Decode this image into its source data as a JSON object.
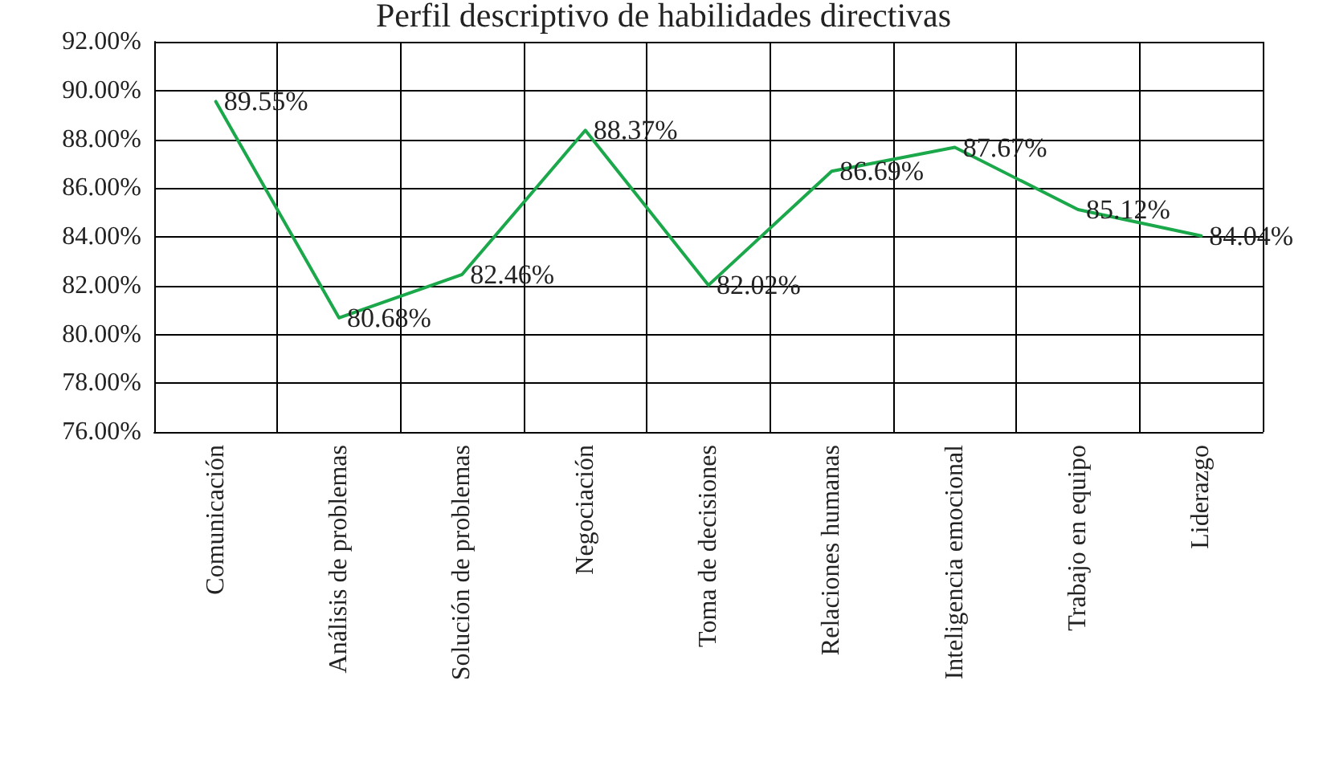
{
  "chart_data": {
    "type": "line",
    "title": "Perfil descriptivo de habilidades directivas",
    "categories": [
      "Comunicación",
      "Análisis de problemas",
      "Solución de problemas",
      "Negociación",
      "Toma de decisiones",
      "Relaciones humanas",
      "Inteligencia emocional",
      "Trabajo en equipo",
      "Liderazgo"
    ],
    "series": [
      {
        "color": "#1aa84a",
        "values": [
          89.55,
          80.68,
          82.46,
          88.37,
          82.02,
          86.69,
          87.67,
          85.12,
          84.04
        ],
        "value_labels": [
          "89.55%",
          "80.68%",
          "82.46%",
          "88.37%",
          "82.02%",
          "86.69%",
          "87.67%",
          "85.12%",
          "84.04%"
        ]
      }
    ],
    "ylim": [
      76,
      92
    ],
    "yticks": [
      {
        "value": 76,
        "label": "76.00%"
      },
      {
        "value": 78,
        "label": "78.00%"
      },
      {
        "value": 80,
        "label": "80.00%"
      },
      {
        "value": 82,
        "label": "82.00%"
      },
      {
        "value": 84,
        "label": "84.00%"
      },
      {
        "value": 86,
        "label": "86.00%"
      },
      {
        "value": 88,
        "label": "88.00%"
      },
      {
        "value": 90,
        "label": "90.00%"
      },
      {
        "value": 92,
        "label": "92.00%"
      }
    ],
    "grid": true,
    "marker": "none",
    "line_style": "solid"
  }
}
